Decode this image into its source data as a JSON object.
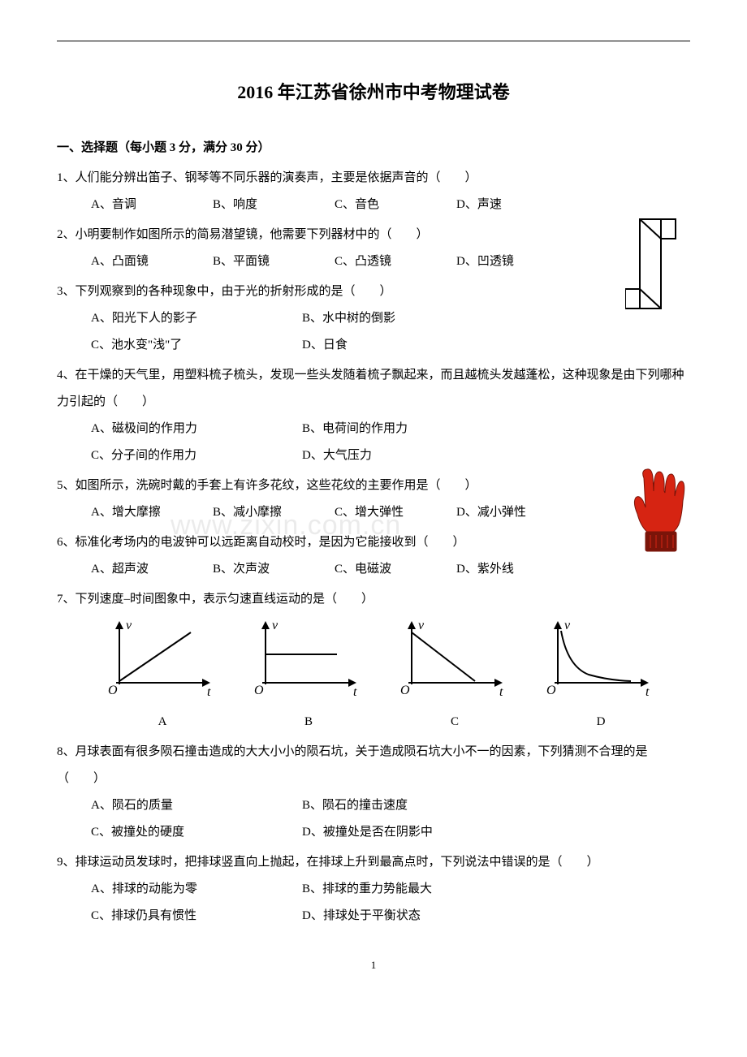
{
  "title": "2016 年江苏省徐州市中考物理试卷",
  "section_heading": "一、选择题（每小题 3 分，满分 30 分）",
  "blank_paren": "（　　）",
  "watermark": "www.zixin.com.cn",
  "page_number": "1",
  "periscope": {
    "stroke": "#000000",
    "stroke_width": 2,
    "fill": "#ffffff"
  },
  "glove": {
    "fill": "#d62412",
    "cuff": "#7a1409"
  },
  "graph_style": {
    "stroke": "#000000",
    "stroke_width": 2,
    "axis_label_v": "v",
    "axis_label_t": "t",
    "origin_label": "O"
  },
  "questions": [
    {
      "num": "1",
      "stem": "人们能分辨出笛子、钢琴等不同乐器的演奏声，主要是依据声音的",
      "options": [
        "A、音调",
        "B、响度",
        "C、音色",
        "D、声速"
      ],
      "layout": "4"
    },
    {
      "num": "2",
      "stem": "小明要制作如图所示的简易潜望镜，他需要下列器材中的",
      "options": [
        "A、凸面镜",
        "B、平面镜",
        "C、凸透镜",
        "D、凹透镜"
      ],
      "layout": "4"
    },
    {
      "num": "3",
      "stem": "下列观察到的各种现象中，由于光的折射形成的是",
      "options": [
        "A、阳光下人的影子",
        "B、水中树的倒影",
        "C、池水变\"浅\"了",
        "D、日食"
      ],
      "layout": "2"
    },
    {
      "num": "4",
      "stem": "在干燥的天气里，用塑料梳子梳头，发现一些头发随着梳子飘起来，而且越梳头发越蓬松，这种现象是由下列哪种力引起的",
      "options": [
        "A、磁极间的作用力",
        "B、电荷间的作用力",
        "C、分子间的作用力",
        "D、大气压力"
      ],
      "layout": "2"
    },
    {
      "num": "5",
      "stem": "如图所示，洗碗时戴的手套上有许多花纹，这些花纹的主要作用是",
      "options": [
        "A、增大摩擦",
        "B、减小摩擦",
        "C、增大弹性",
        "D、减小弹性"
      ],
      "layout": "4"
    },
    {
      "num": "6",
      "stem": "标准化考场内的电波钟可以远距离自动校时，是因为它能接收到",
      "options": [
        "A、超声波",
        "B、次声波",
        "C、电磁波",
        "D、紫外线"
      ],
      "layout": "4"
    },
    {
      "num": "7",
      "stem": "下列速度–时间图象中，表示匀速直线运动的是",
      "options": [],
      "layout": "graphs",
      "labels": [
        "A",
        "B",
        "C",
        "D"
      ]
    },
    {
      "num": "8",
      "stem": "月球表面有很多陨石撞击造成的大大小小的陨石坑，关于造成陨石坑大小不一的因素，下列猜测不合理的是",
      "options": [
        "A、陨石的质量",
        "B、陨石的撞击速度",
        "C、被撞处的硬度",
        "D、被撞处是否在阴影中"
      ],
      "layout": "2"
    },
    {
      "num": "9",
      "stem": "排球运动员发球时，把排球竖直向上抛起，在排球上升到最高点时，下列说法中错误的是",
      "options": [
        "A、排球的动能为零",
        "B、排球的重力势能最大",
        "C、排球仍具有惯性",
        "D、排球处于平衡状态"
      ],
      "layout": "2"
    }
  ]
}
